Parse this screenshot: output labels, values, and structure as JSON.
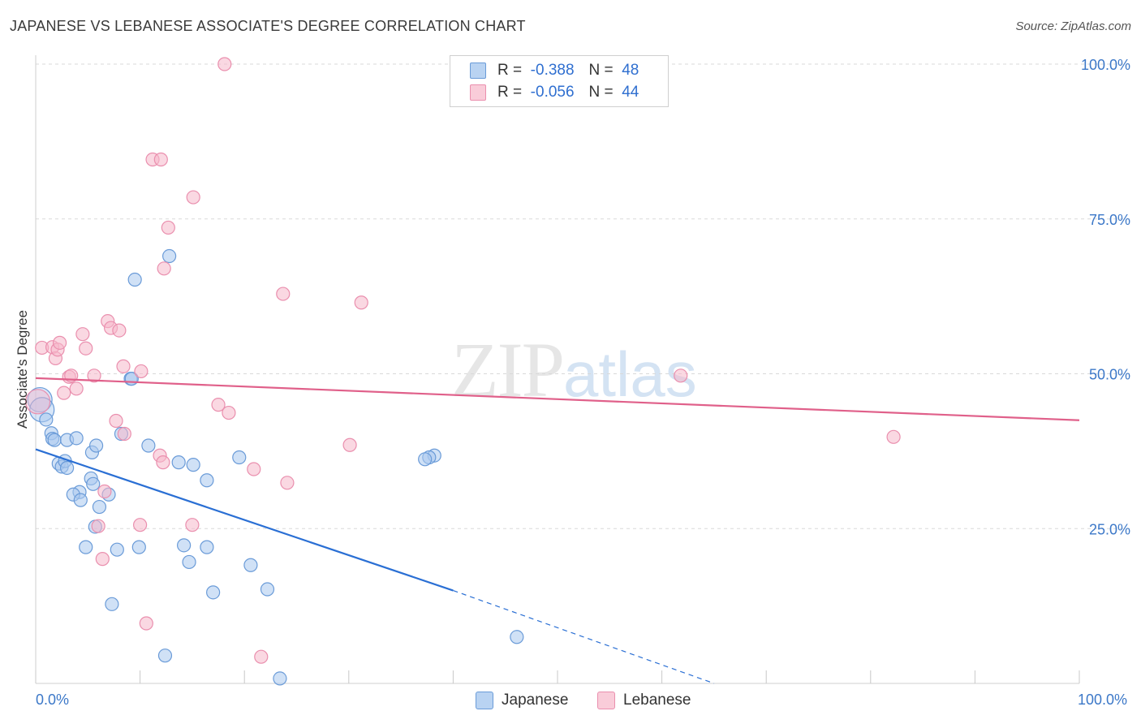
{
  "title": "JAPANESE VS LEBANESE ASSOCIATE'S DEGREE CORRELATION CHART",
  "source": "Source: ZipAtlas.com",
  "watermark": {
    "part1": "ZIP",
    "part2": "atlas"
  },
  "legend_top": [
    {
      "r_label": "R =",
      "r_value": "-0.388",
      "n_label": "N =",
      "n_value": "48"
    },
    {
      "r_label": "R =",
      "r_value": "-0.056",
      "n_label": "N =",
      "n_value": "44"
    }
  ],
  "colors": {
    "japanese_fill": "#a9c8ef",
    "japanese_stroke": "#6a9bd8",
    "japanese_line": "#2a6fd4",
    "lebanese_fill": "#f6b8cb",
    "lebanese_stroke": "#ea8fae",
    "lebanese_line": "#e0608a",
    "tick_label": "#3c78c8",
    "grid": "#d9d9d9"
  },
  "chart_data": {
    "type": "scatter",
    "title": "JAPANESE VS LEBANESE ASSOCIATE'S DEGREE CORRELATION CHART",
    "xlabel": "",
    "ylabel": "Associate's Degree",
    "xlim": [
      0,
      100
    ],
    "ylim": [
      0,
      100
    ],
    "x_tick_labels": [
      "0.0%",
      "100.0%"
    ],
    "y_ticks": [
      25,
      50,
      75,
      100
    ],
    "y_tick_labels": [
      "25.0%",
      "50.0%",
      "75.0%",
      "100.0%"
    ],
    "grid": true,
    "legend": [
      "Japanese",
      "Lebanese"
    ],
    "series": [
      {
        "name": "Japanese",
        "r": -0.388,
        "n": 48,
        "points": [
          [
            0.4,
            45.8
          ],
          [
            0.6,
            44.2
          ],
          [
            1.0,
            42.6
          ],
          [
            1.5,
            40.4
          ],
          [
            1.6,
            39.5
          ],
          [
            1.8,
            39.3
          ],
          [
            3.0,
            39.3
          ],
          [
            3.9,
            39.6
          ],
          [
            2.2,
            35.5
          ],
          [
            2.5,
            35.0
          ],
          [
            2.8,
            35.9
          ],
          [
            3.0,
            34.8
          ],
          [
            5.4,
            37.3
          ],
          [
            5.8,
            38.4
          ],
          [
            8.2,
            40.3
          ],
          [
            10.8,
            38.4
          ],
          [
            5.3,
            33.1
          ],
          [
            5.5,
            32.2
          ],
          [
            4.2,
            30.9
          ],
          [
            3.6,
            30.5
          ],
          [
            4.3,
            29.6
          ],
          [
            7.0,
            30.5
          ],
          [
            6.1,
            28.5
          ],
          [
            5.7,
            25.3
          ],
          [
            9.1,
            49.2
          ],
          [
            9.2,
            49.2
          ],
          [
            9.5,
            65.2
          ],
          [
            12.8,
            69.0
          ],
          [
            13.7,
            35.7
          ],
          [
            15.1,
            35.3
          ],
          [
            16.4,
            32.8
          ],
          [
            19.5,
            36.5
          ],
          [
            4.8,
            22.0
          ],
          [
            7.8,
            21.6
          ],
          [
            9.9,
            22.0
          ],
          [
            14.2,
            22.3
          ],
          [
            14.7,
            19.6
          ],
          [
            16.4,
            22.0
          ],
          [
            20.6,
            19.1
          ],
          [
            17.0,
            14.7
          ],
          [
            7.3,
            12.8
          ],
          [
            22.2,
            15.2
          ],
          [
            12.4,
            4.5
          ],
          [
            23.4,
            0.8
          ],
          [
            38.2,
            36.8
          ],
          [
            37.7,
            36.5
          ],
          [
            46.1,
            7.5
          ],
          [
            37.3,
            36.2
          ]
        ]
      },
      {
        "name": "Lebanese",
        "r": -0.056,
        "n": 44,
        "points": [
          [
            0.2,
            45.5
          ],
          [
            0.6,
            54.2
          ],
          [
            1.6,
            54.3
          ],
          [
            1.9,
            52.5
          ],
          [
            2.1,
            53.9
          ],
          [
            2.3,
            55.0
          ],
          [
            2.7,
            46.9
          ],
          [
            3.2,
            49.5
          ],
          [
            3.4,
            49.7
          ],
          [
            3.9,
            47.6
          ],
          [
            4.5,
            56.4
          ],
          [
            4.8,
            54.1
          ],
          [
            5.6,
            49.7
          ],
          [
            6.9,
            58.5
          ],
          [
            7.2,
            57.4
          ],
          [
            8.0,
            57.0
          ],
          [
            8.4,
            51.2
          ],
          [
            8.5,
            40.3
          ],
          [
            7.7,
            42.4
          ],
          [
            10.1,
            50.4
          ],
          [
            11.9,
            36.8
          ],
          [
            12.2,
            35.7
          ],
          [
            12.3,
            67.0
          ],
          [
            12.7,
            73.6
          ],
          [
            11.2,
            84.6
          ],
          [
            12.0,
            84.6
          ],
          [
            15.1,
            78.5
          ],
          [
            18.1,
            100.0
          ],
          [
            17.5,
            45.0
          ],
          [
            18.5,
            43.7
          ],
          [
            20.9,
            34.6
          ],
          [
            23.7,
            62.9
          ],
          [
            24.1,
            32.4
          ],
          [
            30.1,
            38.5
          ],
          [
            31.2,
            61.5
          ],
          [
            6.6,
            31.0
          ],
          [
            6.0,
            25.4
          ],
          [
            10.0,
            25.6
          ],
          [
            15.0,
            25.6
          ],
          [
            6.4,
            20.1
          ],
          [
            10.6,
            9.7
          ],
          [
            21.6,
            4.3
          ],
          [
            61.8,
            49.7
          ],
          [
            82.2,
            39.8
          ]
        ]
      }
    ],
    "trend_lines": [
      {
        "series": "Japanese",
        "from": [
          0.0,
          37.8
        ],
        "to": [
          40.0,
          15.0
        ],
        "dashed_to": [
          65.0,
          0.0
        ]
      },
      {
        "series": "Lebanese",
        "from": [
          0.0,
          49.3
        ],
        "to": [
          100.0,
          42.5
        ]
      }
    ]
  }
}
